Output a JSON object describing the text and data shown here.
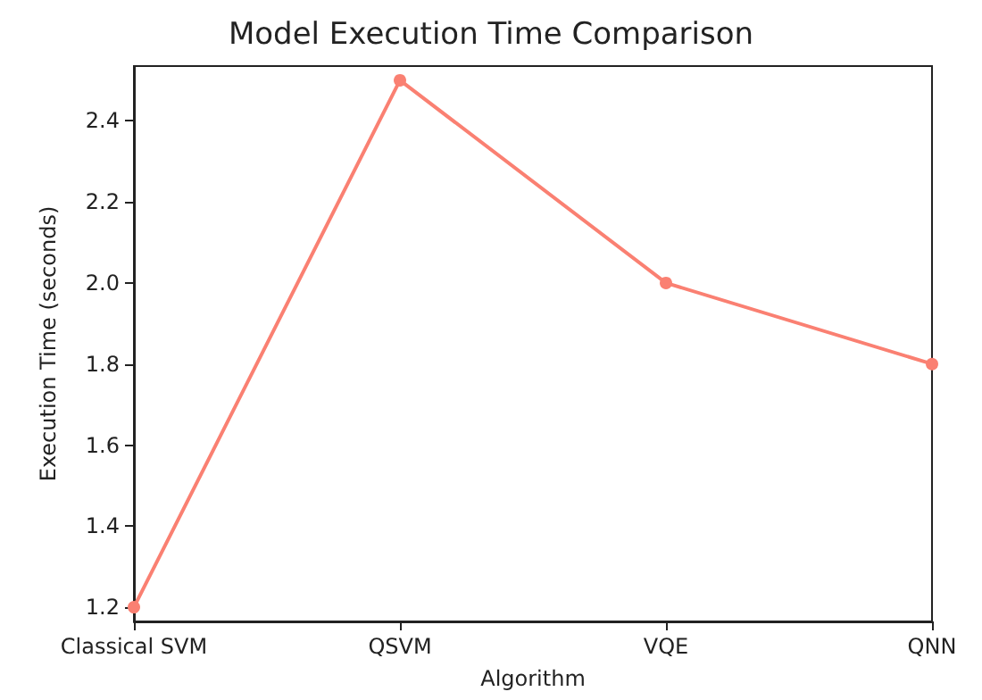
{
  "chart_data": {
    "type": "line",
    "title": "Model Execution Time Comparison",
    "xlabel": "Algorithm",
    "ylabel": "Execution Time (seconds)",
    "categories": [
      "Classical SVM",
      "QSVM",
      "VQE",
      "QNN"
    ],
    "series": [
      {
        "color": "#fa8072",
        "values": [
          1.2,
          2.5,
          2.0,
          1.8
        ]
      }
    ],
    "ylim": [
      1.165,
      2.535
    ],
    "yticks": [
      1.2,
      1.4,
      1.6,
      1.8,
      {
        "value": 2,
        "label": "2.0"
      },
      2.2,
      2.4
    ],
    "grid": false,
    "marker": "circle",
    "line_style": "solid"
  }
}
